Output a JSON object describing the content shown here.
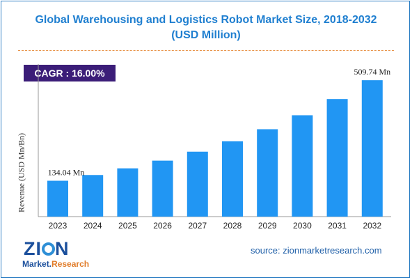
{
  "chart_data": {
    "type": "bar",
    "title_line1": "Global Warehousing and Logistics Robot Market Size, 2018-2032",
    "title_line2": "(USD Million)",
    "ylabel": "Revenue (USD Mn/Bn)",
    "xlabel": "",
    "categories": [
      "2023",
      "2024",
      "2025",
      "2026",
      "2027",
      "2028",
      "2029",
      "2030",
      "2031",
      "2032"
    ],
    "values": [
      134.04,
      155.5,
      180.4,
      209.2,
      242.7,
      281.5,
      326.6,
      378.8,
      439.4,
      509.74
    ],
    "data_labels": {
      "first": "134.04 Mn",
      "last": "509.74 Mn"
    },
    "bar_color": "#2196f3",
    "grid": false,
    "ylim": [
      0,
      570
    ]
  },
  "cagr": "CAGR :  16.00%",
  "logo": {
    "word_prefix": "Z",
    "word_i": "I",
    "word_n": "N",
    "sub_main": "Market.",
    "sub_accent": "Research"
  },
  "source": "source: zionmarketresearch.com"
}
